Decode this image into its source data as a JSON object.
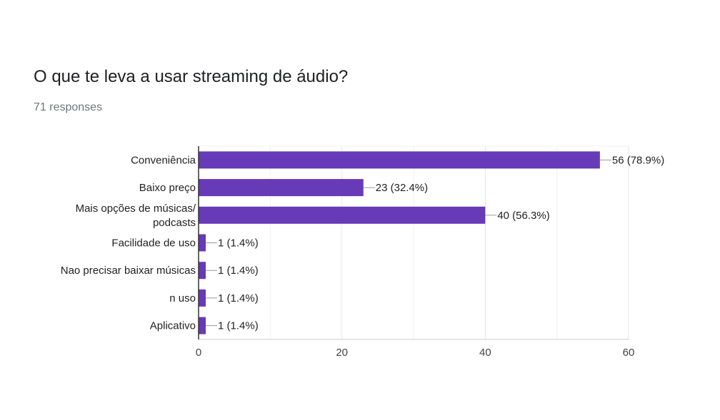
{
  "header": {
    "title": "O que te leva a usar streaming de áudio?",
    "responses": "71 responses"
  },
  "chart_data": {
    "type": "bar",
    "orientation": "horizontal",
    "title": "O que te leva a usar streaming de áudio?",
    "categories": [
      [
        "Conveniência"
      ],
      [
        "Baixo preço"
      ],
      [
        "Mais opções de músicas/",
        "podcasts"
      ],
      [
        "Facilidade de uso"
      ],
      [
        "Nao precisar baixar músicas"
      ],
      [
        "n uso"
      ],
      [
        "Aplicativo"
      ]
    ],
    "values": [
      56,
      23,
      40,
      1,
      1,
      1,
      1
    ],
    "value_labels": [
      "56 (78.9%)",
      "23 (32.4%)",
      "40 (56.3%)",
      "1 (1.4%)",
      "1 (1.4%)",
      "1 (1.4%)",
      "1 (1.4%)"
    ],
    "xlim": [
      0,
      60
    ],
    "xticks": [
      0,
      20,
      40,
      60
    ],
    "grid": true,
    "bar_color": "#673ab7",
    "xlabel": "",
    "ylabel": ""
  }
}
